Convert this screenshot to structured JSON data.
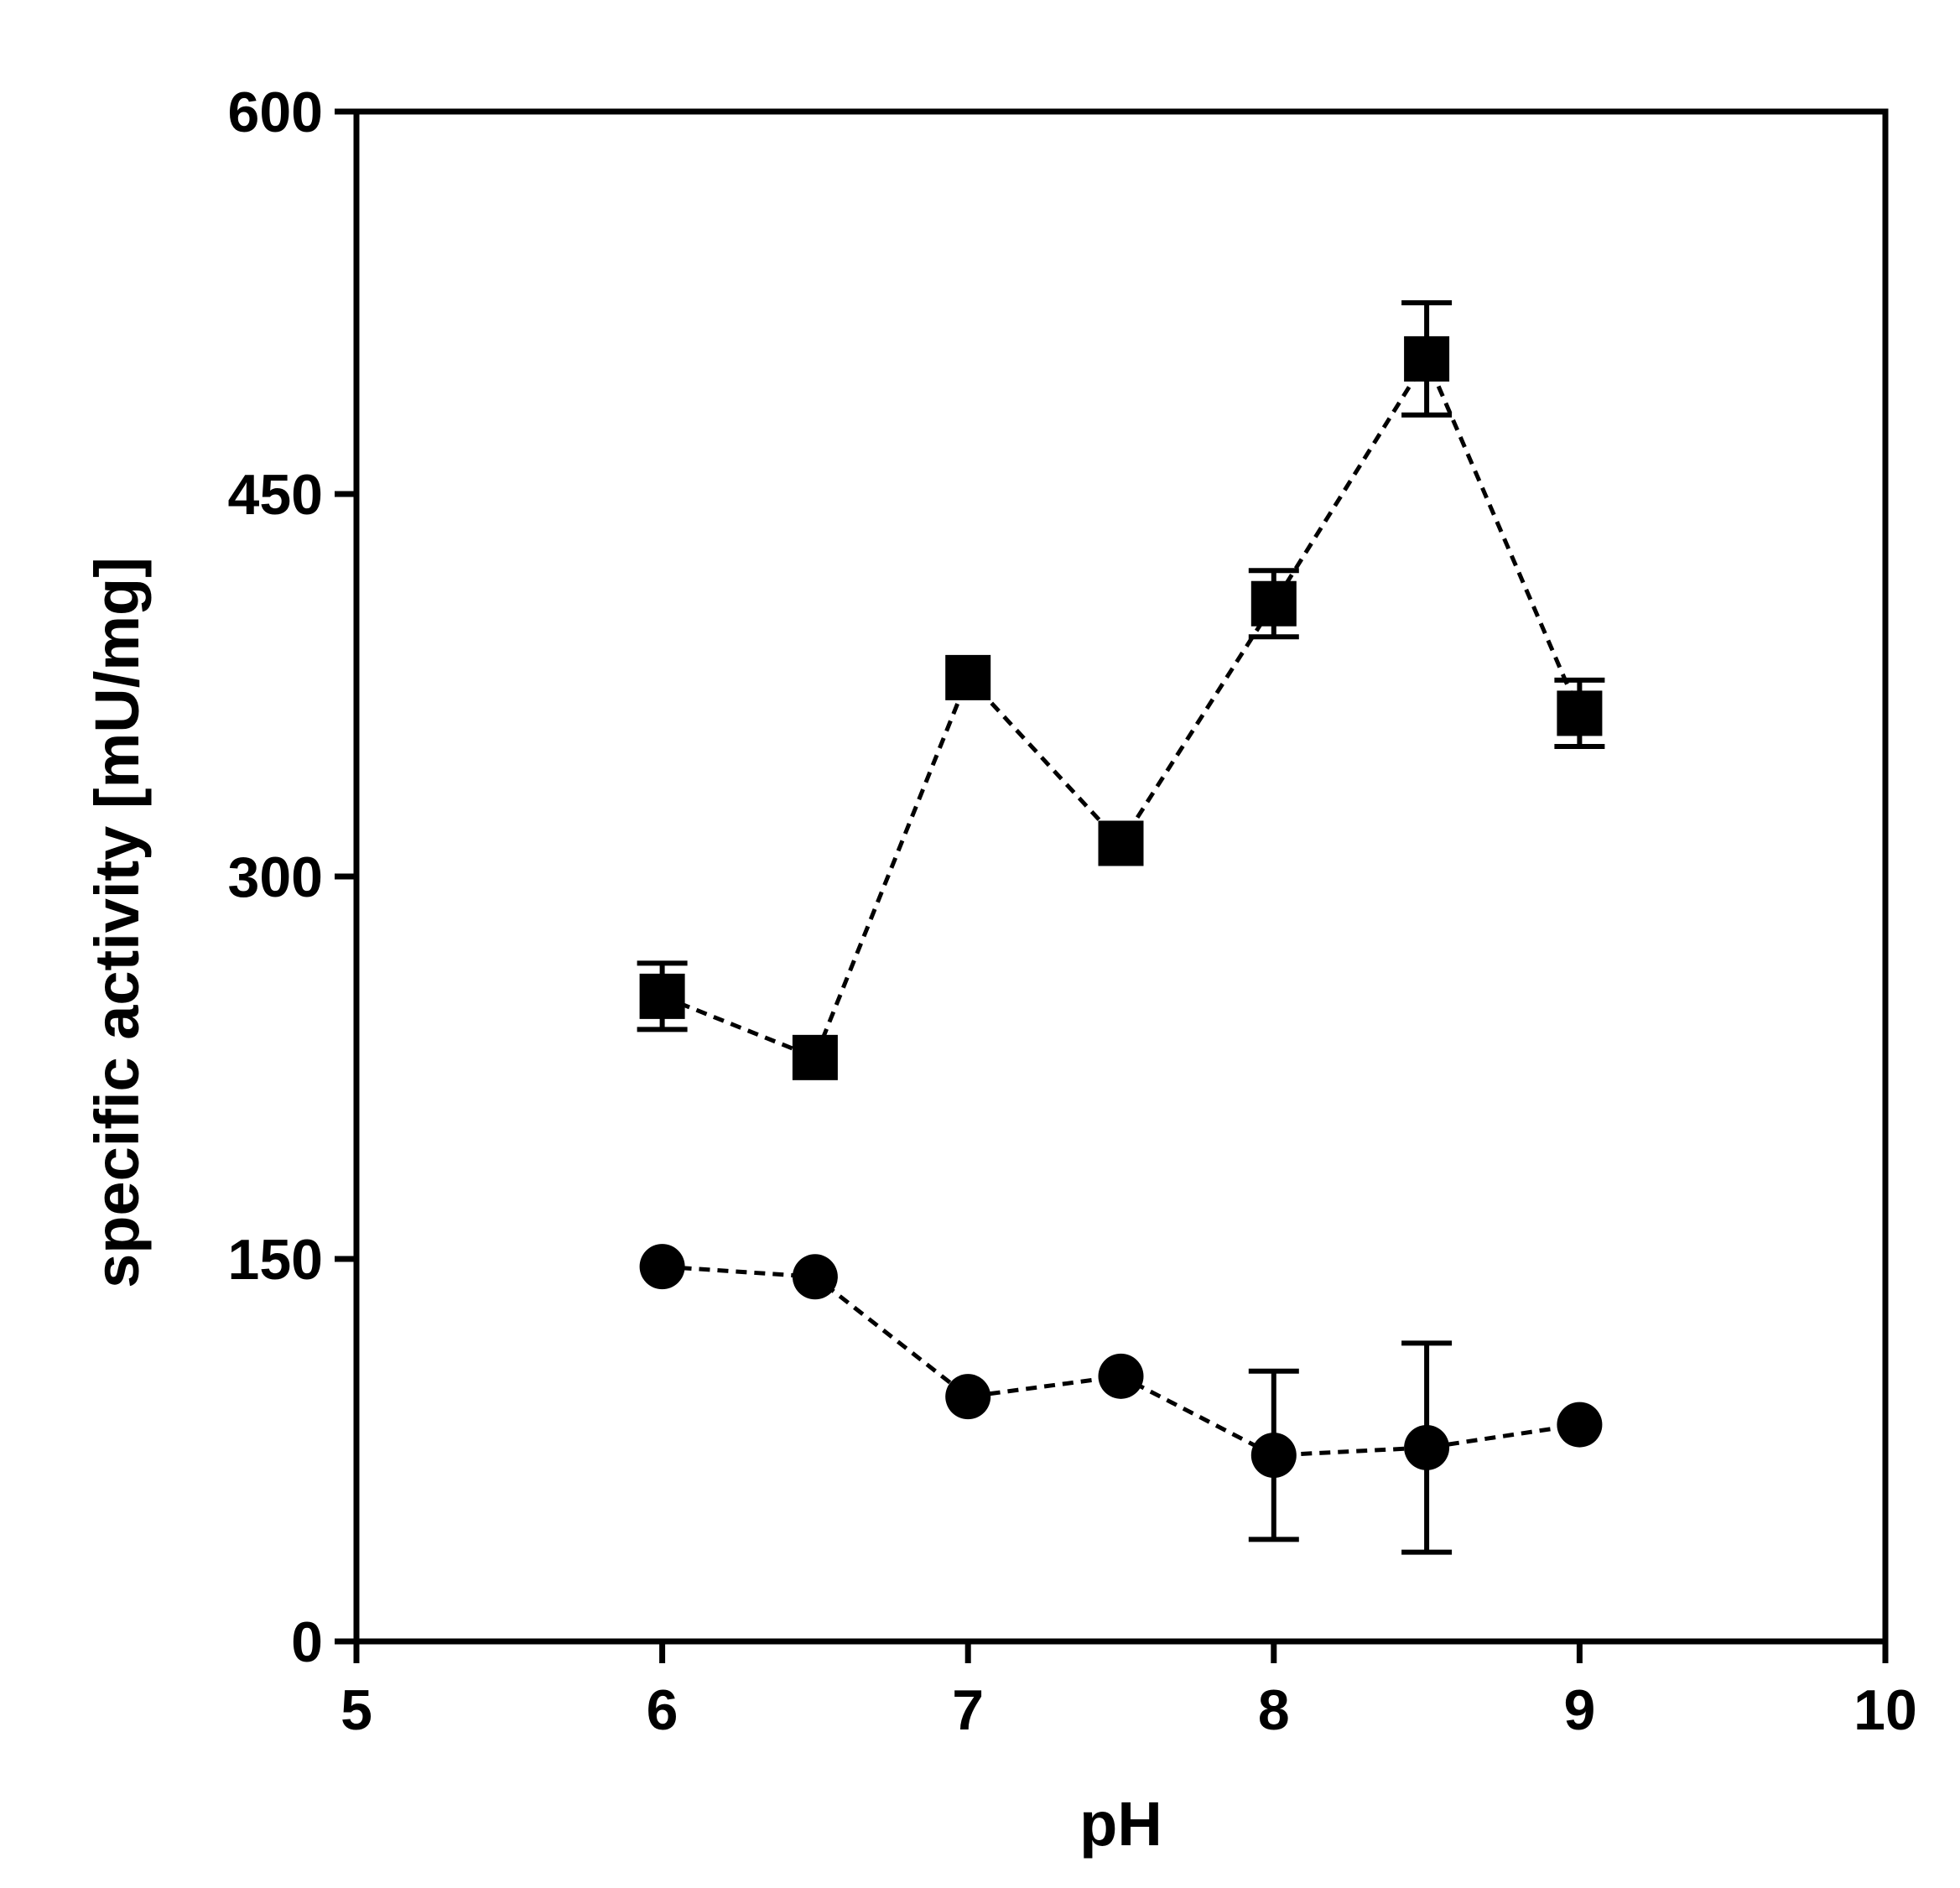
{
  "chart_data": {
    "type": "scatter",
    "title": "",
    "xlabel": "pH",
    "ylabel": "specific activity [mU/mg]",
    "xlim": [
      5,
      10
    ],
    "ylim": [
      0,
      600
    ],
    "xticks": [
      5,
      6,
      7,
      8,
      9,
      10
    ],
    "yticks": [
      0,
      150,
      300,
      450,
      600
    ],
    "xtick_labels": [
      "5",
      "6",
      "7",
      "8",
      "9",
      "10"
    ],
    "ytick_labels": [
      "0",
      "150",
      "300",
      "450",
      "600"
    ],
    "grid": false,
    "legend": "none",
    "series": [
      {
        "marker": "square",
        "line_style": "dashed",
        "color": "#000000",
        "x": [
          6,
          6.5,
          7,
          7.5,
          8,
          8.5,
          9
        ],
        "y": [
          253,
          229,
          378,
          313,
          407,
          503,
          364
        ],
        "error": [
          13,
          0,
          0,
          0,
          13,
          22,
          13
        ]
      },
      {
        "marker": "circle",
        "line_style": "dashed",
        "color": "#000000",
        "x": [
          6,
          6.5,
          7,
          7.5,
          8,
          8.5,
          9
        ],
        "y": [
          147,
          143,
          96,
          104,
          73,
          76,
          85
        ],
        "error": [
          0,
          0,
          0,
          0,
          33,
          41,
          0
        ]
      }
    ]
  }
}
